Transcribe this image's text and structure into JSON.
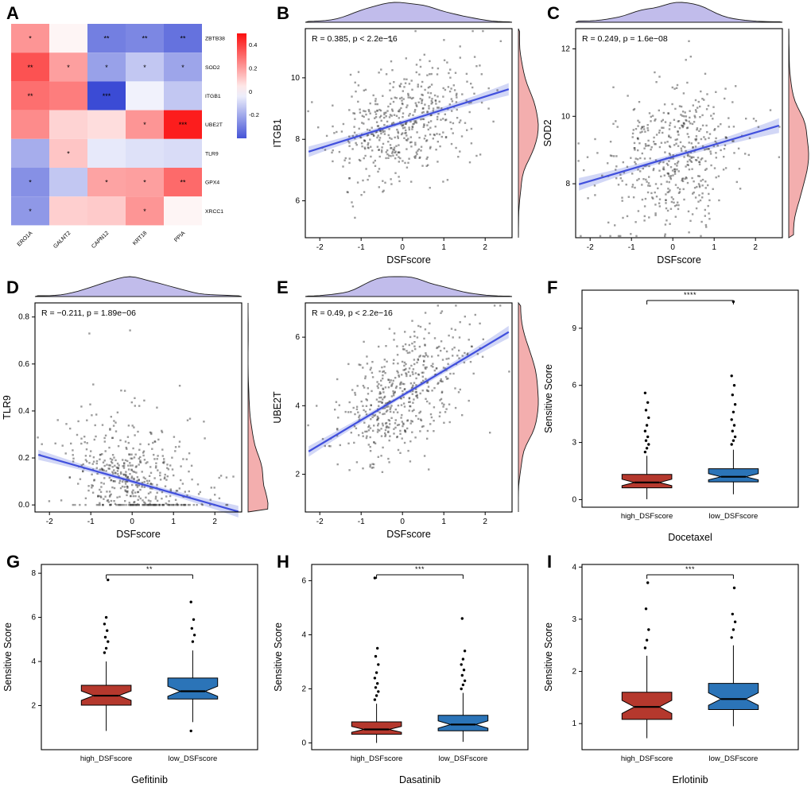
{
  "colors": {
    "point": "#3a3a3a",
    "line": "#4150dd",
    "band": "#8f9ce8",
    "density_top": "#b6b0e8",
    "density_right": "#f2a5a5",
    "box_red": "#B5382D",
    "box_blue": "#2B74B8",
    "heat_red": "#fc0f0f",
    "heat_blue": "#2e3fd2"
  },
  "chart_data": [
    {
      "panel": "A",
      "type": "heatmap",
      "rows": [
        "ZBTB38",
        "SOD2",
        "ITGB1",
        "UBE2T",
        "TLR9",
        "GPX4",
        "XRCC1"
      ],
      "cols": [
        "ERO1A",
        "GALNT2",
        "CAPN12",
        "KRT18",
        "PPIA"
      ],
      "values": [
        [
          0.22,
          0.02,
          -0.3,
          -0.28,
          -0.33
        ],
        [
          0.36,
          0.2,
          -0.22,
          -0.13,
          -0.21
        ],
        [
          0.3,
          0.27,
          -0.42,
          -0.03,
          -0.13
        ],
        [
          0.24,
          0.09,
          0.07,
          0.22,
          0.47
        ],
        [
          -0.19,
          0.12,
          -0.05,
          -0.07,
          -0.08
        ],
        [
          -0.26,
          -0.13,
          0.19,
          0.2,
          0.31
        ],
        [
          -0.24,
          0.1,
          0.11,
          0.22,
          0.02
        ]
      ],
      "stars": [
        [
          "*",
          "",
          "**",
          "**",
          "**"
        ],
        [
          "**",
          "*",
          "*",
          "*",
          "*"
        ],
        [
          "**",
          "",
          "***",
          "",
          ""
        ],
        [
          "",
          "",
          "",
          "*",
          "***"
        ],
        [
          "",
          "*",
          "",
          "",
          ""
        ],
        [
          "*",
          "",
          "*",
          "*",
          "**"
        ],
        [
          "*",
          "",
          "",
          "*",
          ""
        ]
      ],
      "legend_ticks": [
        "0.4",
        "0.2",
        "0",
        "-0.2"
      ],
      "legend_range": [
        0.5,
        -0.4
      ]
    },
    {
      "panel": "B",
      "type": "scatter",
      "annotation": "R = 0.385, p < 2.2e−16",
      "xlabel": "DSFscore",
      "ylabel": "ITGB1",
      "x_ticks": [
        "-2",
        "-1",
        "0",
        "1",
        "2"
      ],
      "y_ticks": [
        "6",
        "8",
        "10"
      ],
      "xlim": [
        -2.35,
        2.65
      ],
      "ylim": [
        4.8,
        11.6
      ],
      "n": 520,
      "seed": 11,
      "x_mean": 0,
      "x_sd": 0.82,
      "fit": {
        "intercept": 8.55,
        "slope": 0.42,
        "noise": 0.92
      }
    },
    {
      "panel": "C",
      "type": "scatter",
      "annotation": "R = 0.249, p = 1.6e−08",
      "xlabel": "DSFscore",
      "ylabel": "SOD2",
      "x_ticks": [
        "-2",
        "-1",
        "0",
        "1",
        "2"
      ],
      "y_ticks": [
        "8",
        "10",
        "12"
      ],
      "xlim": [
        -2.35,
        2.65
      ],
      "ylim": [
        6.4,
        12.6
      ],
      "n": 500,
      "seed": 22,
      "x_mean": 0,
      "x_sd": 0.82,
      "fit": {
        "intercept": 8.8,
        "slope": 0.36,
        "noise": 1.0
      }
    },
    {
      "panel": "D",
      "type": "scatter",
      "annotation": "R = −0.211, p = 1.89e−06",
      "xlabel": "DSFscore",
      "ylabel": "TLR9",
      "x_ticks": [
        "-2",
        "-1",
        "0",
        "1",
        "2"
      ],
      "y_ticks": [
        "0.0",
        "0.2",
        "0.4",
        "0.6",
        "0.8"
      ],
      "xlim": [
        -2.35,
        2.65
      ],
      "ylim": [
        -0.03,
        0.86
      ],
      "n": 520,
      "seed": 33,
      "x_mean": 0,
      "x_sd": 0.82,
      "clamp_zero": true,
      "fit": {
        "intercept": 0.1,
        "slope": -0.05,
        "noise": 0.115
      }
    },
    {
      "panel": "E",
      "type": "scatter",
      "annotation": "R = 0.49, p < 2.2e−16",
      "xlabel": "DSFscore",
      "ylabel": "UBE2T",
      "x_ticks": [
        "-2",
        "-1",
        "0",
        "1",
        "2"
      ],
      "y_ticks": [
        "2",
        "4",
        "6"
      ],
      "xlim": [
        -2.35,
        2.65
      ],
      "ylim": [
        0.9,
        7.0
      ],
      "n": 520,
      "seed": 44,
      "x_mean": 0,
      "x_sd": 0.82,
      "fit": {
        "intercept": 4.3,
        "slope": 0.72,
        "noise": 0.82
      }
    },
    {
      "panel": "F",
      "type": "boxplot",
      "xlabel": "Docetaxel",
      "ylabel": "Sensitive Score",
      "significance": "****",
      "y_ticks": [
        "0",
        "3",
        "6",
        "9"
      ],
      "ylim": [
        -0.4,
        11.0
      ],
      "groups": [
        {
          "label": "high_DSFscore",
          "color": "#B5382D",
          "median": 0.9,
          "q1": 0.62,
          "q3": 1.32,
          "whisker_low": 0.02,
          "whisker_high": 2.3,
          "outliers": [
            2.5,
            2.7,
            2.9,
            3.1,
            3.3,
            3.6,
            3.9,
            4.3,
            4.7,
            5.1,
            5.6
          ]
        },
        {
          "label": "low_DSFscore",
          "color": "#2B74B8",
          "median": 1.2,
          "q1": 0.93,
          "q3": 1.62,
          "whisker_low": 0.28,
          "whisker_high": 2.62,
          "outliers": [
            2.9,
            3.1,
            3.3,
            3.6,
            3.9,
            4.2,
            4.6,
            5.0,
            5.5,
            6.0,
            6.5,
            10.4
          ]
        }
      ]
    },
    {
      "panel": "G",
      "type": "boxplot",
      "xlabel": "Gefitinib",
      "ylabel": "Sensitive Score",
      "significance": "**",
      "y_ticks": [
        "2",
        "4",
        "6",
        "8"
      ],
      "ylim": [
        0.0,
        8.4
      ],
      "groups": [
        {
          "label": "high_DSFscore",
          "color": "#B5382D",
          "median": 2.45,
          "q1": 2.02,
          "q3": 2.92,
          "whisker_low": 0.85,
          "whisker_high": 4.0,
          "outliers": [
            4.4,
            4.6,
            4.9,
            5.1,
            5.4,
            5.7,
            6.0,
            7.7
          ]
        },
        {
          "label": "low_DSFscore",
          "color": "#2B74B8",
          "median": 2.65,
          "q1": 2.3,
          "q3": 3.25,
          "whisker_low": 1.25,
          "whisker_high": 4.5,
          "outliers": [
            0.85,
            4.9,
            5.2,
            5.5,
            5.9,
            6.7
          ]
        }
      ]
    },
    {
      "panel": "H",
      "type": "boxplot",
      "xlabel": "Dasatinib",
      "ylabel": "Sensitive Score",
      "significance": "***",
      "y_ticks": [
        "0",
        "2",
        "4",
        "6"
      ],
      "ylim": [
        -0.25,
        6.6
      ],
      "groups": [
        {
          "label": "high_DSFscore",
          "color": "#B5382D",
          "median": 0.5,
          "q1": 0.32,
          "q3": 0.78,
          "whisker_low": 0.0,
          "whisker_high": 1.45,
          "outliers": [
            1.6,
            1.75,
            1.9,
            2.05,
            2.2,
            2.4,
            2.6,
            2.9,
            3.2,
            3.5,
            6.1
          ]
        },
        {
          "label": "low_DSFscore",
          "color": "#2B74B8",
          "median": 0.68,
          "q1": 0.45,
          "q3": 1.02,
          "whisker_low": 0.04,
          "whisker_high": 1.85,
          "outliers": [
            2.0,
            2.15,
            2.3,
            2.5,
            2.7,
            2.9,
            3.1,
            3.4,
            4.6
          ]
        }
      ]
    },
    {
      "panel": "I",
      "type": "boxplot",
      "xlabel": "Erlotinib",
      "ylabel": "Sensitive Score",
      "significance": "***",
      "y_ticks": [
        "1",
        "2",
        "3",
        "4"
      ],
      "ylim": [
        0.5,
        4.05
      ],
      "groups": [
        {
          "label": "high_DSFscore",
          "color": "#B5382D",
          "median": 1.32,
          "q1": 1.08,
          "q3": 1.6,
          "whisker_low": 0.72,
          "whisker_high": 2.3,
          "outliers": [
            2.45,
            2.6,
            2.8,
            3.2,
            3.7
          ]
        },
        {
          "label": "low_DSFscore",
          "color": "#2B74B8",
          "median": 1.47,
          "q1": 1.27,
          "q3": 1.77,
          "whisker_low": 0.95,
          "whisker_high": 2.5,
          "outliers": [
            2.65,
            2.8,
            2.95,
            3.1,
            3.6
          ]
        }
      ]
    }
  ]
}
